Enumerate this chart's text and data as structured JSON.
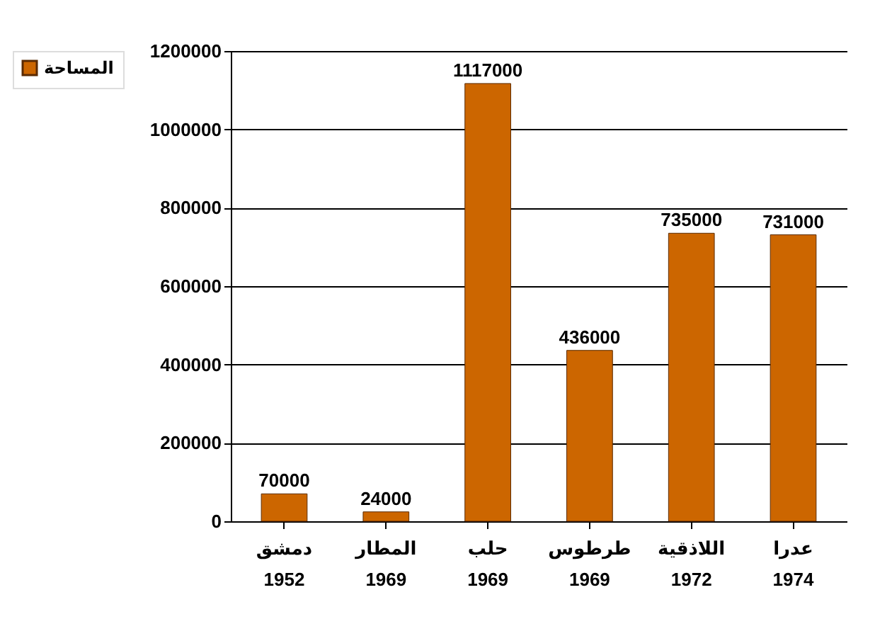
{
  "chart_data": {
    "type": "bar",
    "categories": [
      "دمشق\n1952",
      "المطار\n1969",
      "حلب\n1969",
      "طرطوس\n1969",
      "اللاذقية\n1972",
      "عدرا\n1974"
    ],
    "series": [
      {
        "name": "المساحة",
        "color": "#cc6600",
        "values": [
          70000,
          24000,
          1117000,
          436000,
          735000,
          731000
        ]
      }
    ],
    "ylim": [
      0,
      1200000
    ],
    "yticks": [
      0,
      200000,
      400000,
      600000,
      800000,
      1000000,
      1200000
    ],
    "grid": "y",
    "legend": "left",
    "data_labels": true
  }
}
